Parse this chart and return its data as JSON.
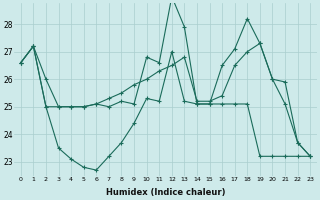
{
  "xlabel": "Humidex (Indice chaleur)",
  "background_color": "#ceeaea",
  "line_color": "#1a6b5a",
  "grid_color": "#aacece",
  "xlim": [
    -0.5,
    23.5
  ],
  "ylim": [
    22.5,
    28.75
  ],
  "yticks": [
    23,
    24,
    25,
    26,
    27,
    28
  ],
  "xticks": [
    0,
    1,
    2,
    3,
    4,
    5,
    6,
    7,
    8,
    9,
    10,
    11,
    12,
    13,
    14,
    15,
    16,
    17,
    18,
    19,
    20,
    21,
    22,
    23
  ],
  "series": [
    [
      26.6,
      27.2,
      26.0,
      25.0,
      25.0,
      25.0,
      25.1,
      25.0,
      25.2,
      25.1,
      26.8,
      26.6,
      29.0,
      27.9,
      25.1,
      25.1,
      26.5,
      27.1,
      28.2,
      27.3,
      26.0,
      25.1,
      23.7,
      23.2
    ],
    [
      26.6,
      27.2,
      25.0,
      23.5,
      23.1,
      22.8,
      22.7,
      23.2,
      23.7,
      24.4,
      25.3,
      25.2,
      27.0,
      25.2,
      25.1,
      25.1,
      25.1,
      25.1,
      25.1,
      23.2,
      23.2,
      23.2,
      23.2,
      23.2
    ],
    [
      26.6,
      27.2,
      25.0,
      25.0,
      25.0,
      25.0,
      25.1,
      25.3,
      25.5,
      25.8,
      26.0,
      26.3,
      26.5,
      26.8,
      25.2,
      25.2,
      25.4,
      26.5,
      27.0,
      27.3,
      26.0,
      25.9,
      23.7,
      23.2
    ]
  ]
}
